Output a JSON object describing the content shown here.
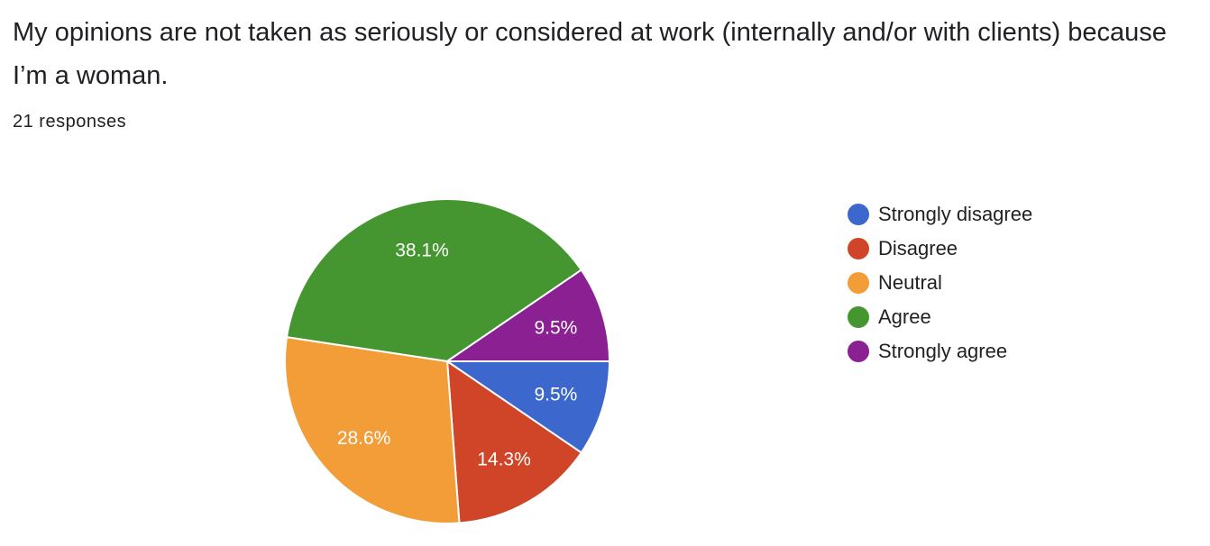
{
  "header": {
    "title": "My opinions are not taken as seriously or considered at work (internally and/or with clients) because I’m a woman.",
    "responses": "21 responses"
  },
  "chart_data": {
    "type": "pie",
    "title": "My opinions are not taken as seriously or considered at work (internally and/or with clients) because I’m a woman.",
    "subtitle": "21 responses",
    "start_angle_deg": 0,
    "direction": "clockwise",
    "legend_position": "right",
    "slices": [
      {
        "name": "Strongly disagree",
        "value": 2,
        "label": "9.5%",
        "color": "#3c67cc"
      },
      {
        "name": "Disagree",
        "value": 3,
        "label": "14.3%",
        "color": "#d04527"
      },
      {
        "name": "Neutral",
        "value": 6,
        "label": "28.6%",
        "color": "#f29d38"
      },
      {
        "name": "Agree",
        "value": 8,
        "label": "38.1%",
        "color": "#459631"
      },
      {
        "name": "Strongly agree",
        "value": 2,
        "label": "9.5%",
        "color": "#8a2092"
      }
    ]
  }
}
